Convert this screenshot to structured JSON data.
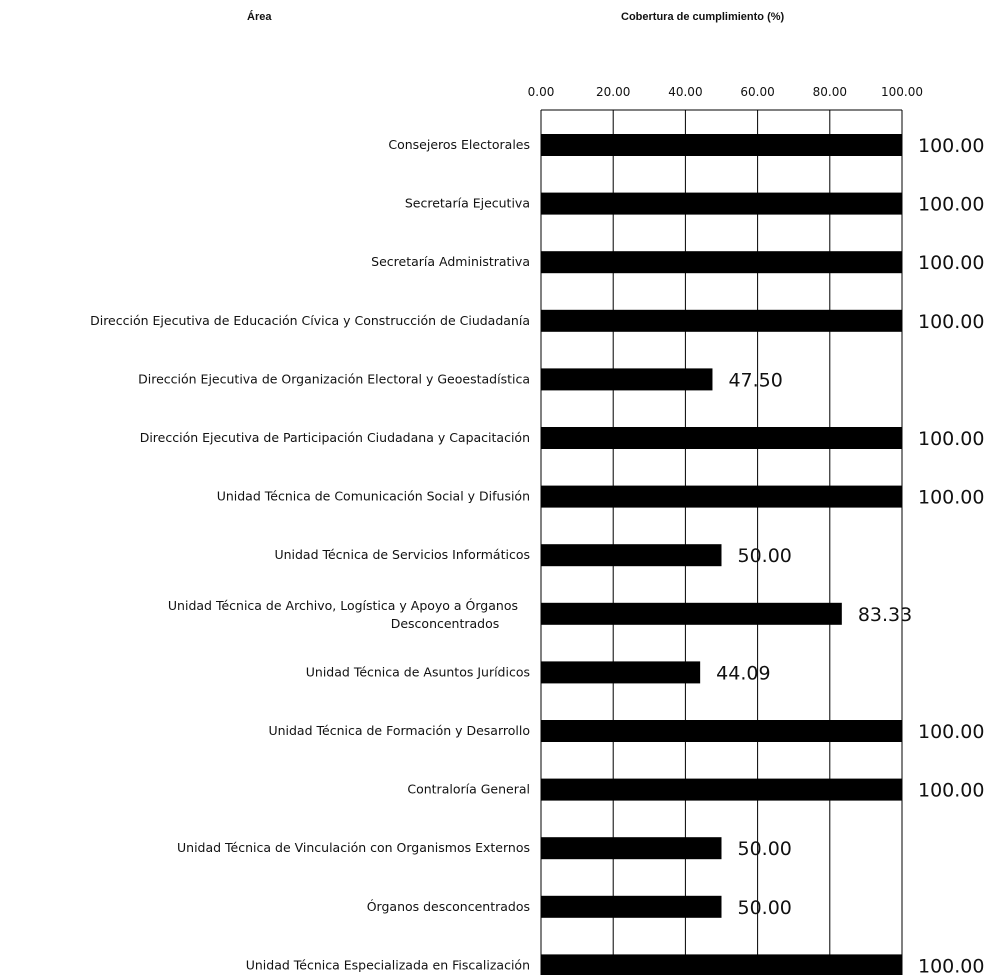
{
  "header": {
    "col_area": "Área",
    "col_value": "Cobertura de cumplimiento (%)"
  },
  "chart_data": {
    "type": "bar",
    "orientation": "horizontal",
    "categories": [
      "Consejeros Electorales",
      "Secretaría Ejecutiva",
      "Secretaría Administrativa",
      "Dirección Ejecutiva de Educación Cívica y Construcción de Ciudadanía",
      "Dirección Ejecutiva de Organización Electoral y Geoestadística",
      "Dirección Ejecutiva de Participación Ciudadana y Capacitación",
      "Unidad Técnica de Comunicación Social y Difusión",
      "Unidad Técnica de Servicios Informáticos",
      "Unidad Técnica de Archivo, Logística y Apoyo a Órganos Desconcentrados",
      "Unidad Técnica de Asuntos Jurídicos",
      "Unidad Técnica de Formación y Desarrollo",
      "Contraloría General",
      "Unidad  Técnica de Vinculación con Organismos Externos",
      "Órganos desconcentrados",
      "Unidad Técnica Especializada en Fiscalización"
    ],
    "values": [
      100.0,
      100.0,
      100.0,
      100.0,
      47.5,
      100.0,
      100.0,
      50.0,
      83.33,
      44.09,
      100.0,
      100.0,
      50.0,
      50.0,
      100.0
    ],
    "data_labels": [
      "100.00",
      "100.00",
      "100.00",
      "100.00",
      "47.50",
      "100.00",
      "100.00",
      "50.00",
      "83.33",
      "44.09",
      "100.00",
      "100.00",
      "50.00",
      "50.00",
      "100.00"
    ],
    "xticks": [
      "0.00",
      "20.00",
      "40.00",
      "60.00",
      "80.00",
      "100.00"
    ],
    "xlim": [
      0,
      100
    ],
    "xaxis_position": "top",
    "grid": true,
    "bar_color": "#000000"
  }
}
